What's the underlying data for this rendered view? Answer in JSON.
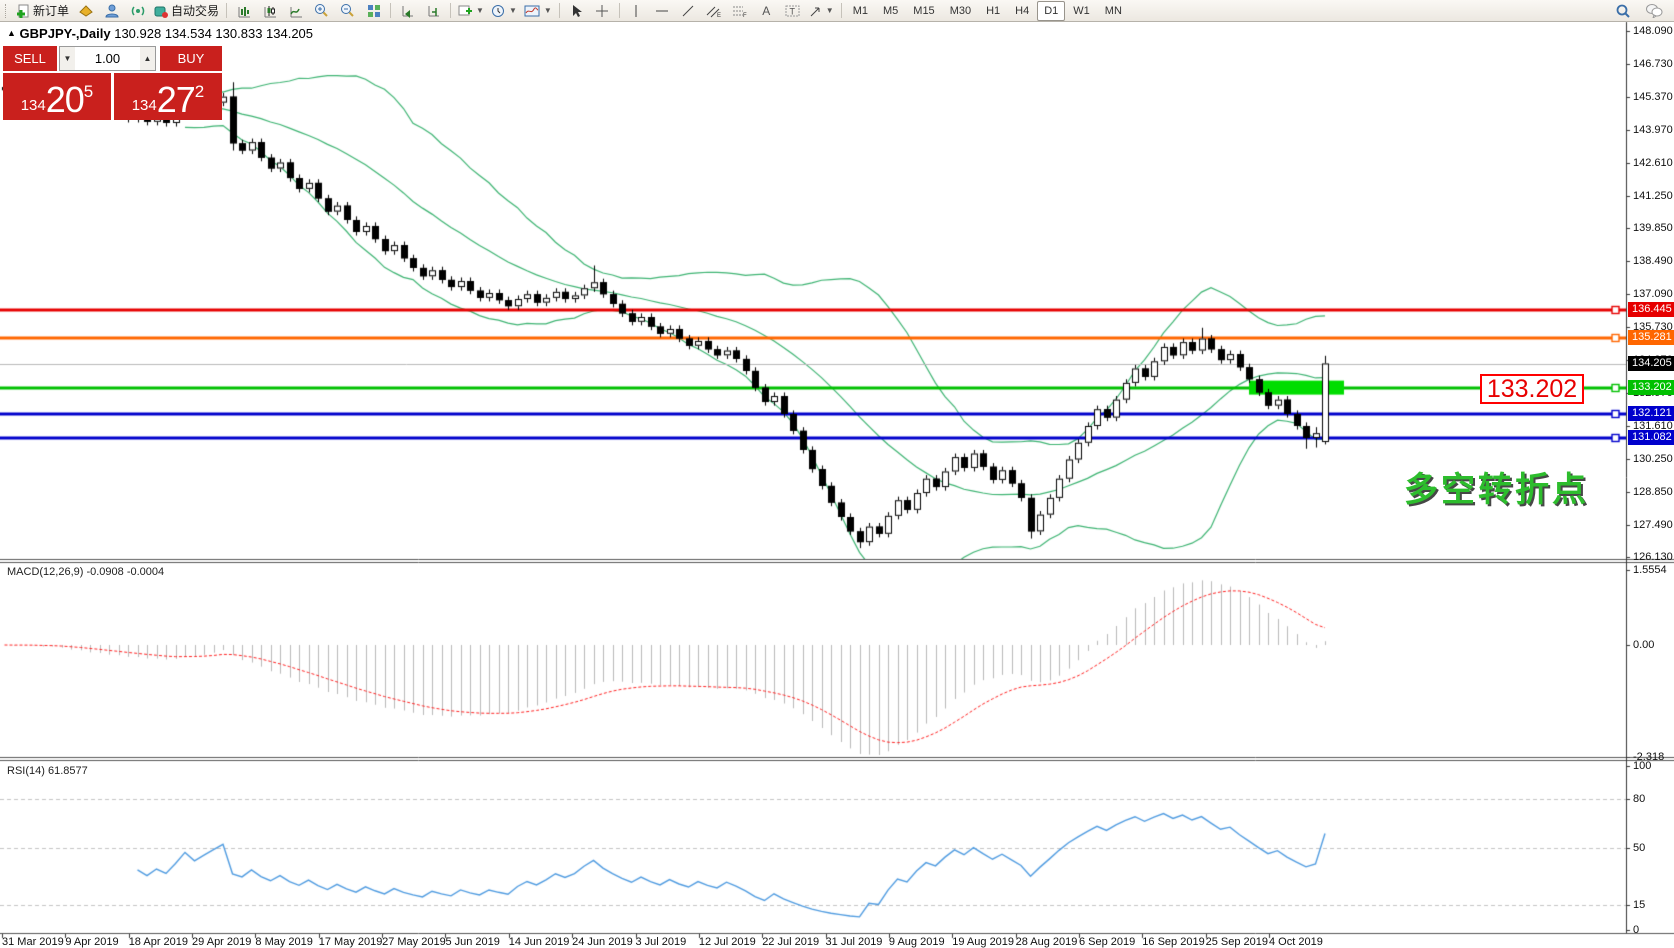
{
  "window": {
    "collapse_icon": "▲",
    "symbol_period": "GBPJPY-,Daily",
    "ohlc": "130.928 134.534 130.833 134.205"
  },
  "toolbar": {
    "new_order": "新订单",
    "autotrade": "自动交易",
    "timeframes": [
      "M1",
      "M5",
      "M15",
      "M30",
      "H1",
      "H4",
      "D1",
      "W1",
      "MN"
    ],
    "active_timeframe": "D1"
  },
  "trade_panel": {
    "sell_label": "SELL",
    "buy_label": "BUY",
    "volume": "1.00",
    "sell_price": {
      "prefix": "134",
      "big": "20",
      "sup": "5"
    },
    "buy_price": {
      "prefix": "134",
      "big": "27",
      "sup": "2"
    }
  },
  "price_axis": {
    "ticks": [
      "148.090",
      "146.730",
      "145.370",
      "143.970",
      "142.610",
      "141.250",
      "139.850",
      "138.490",
      "137.090",
      "135.730",
      "134.370",
      "132.970",
      "131.610",
      "130.250",
      "128.850",
      "127.490",
      "126.130"
    ]
  },
  "current_price": "134.205",
  "hlines": [
    {
      "price": 136.445,
      "label": "136.445",
      "color": "#e60000"
    },
    {
      "price": 135.281,
      "label": "135.281",
      "color": "#ff6600"
    },
    {
      "price": 133.202,
      "label": "133.202",
      "color": "#00c000"
    },
    {
      "price": 132.121,
      "label": "132.121",
      "color": "#0000cc"
    },
    {
      "price": 131.082,
      "label": "131.082",
      "color": "#0000cc"
    }
  ],
  "annotations": {
    "level_label": "133.202",
    "turning_point": "多空转折点",
    "highlight_zone": {
      "from_bar": 131,
      "to_bar": 141,
      "price": 133.202,
      "color": "#00dd00"
    }
  },
  "macd": {
    "label": "MACD(12,26,9) -0.0908 -0.0004",
    "fast": 12,
    "slow": 26,
    "signal": 9,
    "scale": [
      "1.5554",
      "0.00",
      "-2.318"
    ],
    "range": [
      -2.318,
      1.5554
    ]
  },
  "rsi": {
    "label": "RSI(14) 61.8577",
    "period": 14,
    "value": 61.8577,
    "levels": [
      80,
      50,
      15
    ],
    "scale": [
      "100",
      "80",
      "50",
      "15",
      "0"
    ]
  },
  "date_axis": [
    "31 Mar 2019",
    "9 Apr 2019",
    "18 Apr 2019",
    "29 Apr 2019",
    "8 May 2019",
    "17 May 2019",
    "27 May 2019",
    "5 Jun 2019",
    "14 Jun 2019",
    "24 Jun 2019",
    "3 Jul 2019",
    "12 Jul 2019",
    "22 Jul 2019",
    "31 Jul 2019",
    "9 Aug 2019",
    "19 Aug 2019",
    "28 Aug 2019",
    "6 Sep 2019",
    "16 Sep 2019",
    "25 Sep 2019",
    "4 Oct 2019"
  ],
  "chart_data": {
    "type": "candlestick",
    "symbol": "GBPJPY",
    "timeframe": "Daily",
    "price_range": [
      126.13,
      148.09
    ],
    "indicators": {
      "bollinger": {
        "period": 20,
        "deviation": 2,
        "color": "#3cb371"
      },
      "macd": {
        "fast": 12,
        "slow": 26,
        "signal": 9,
        "histogram_color": "#b8b8b8",
        "signal_color": "#ff2020"
      },
      "rsi": {
        "period": 14,
        "color": "#4f9be0"
      }
    },
    "candles": [
      [
        145.75,
        145.9,
        145.47,
        145.62
      ],
      [
        145.62,
        145.77,
        145.33,
        145.48
      ],
      [
        145.48,
        145.85,
        145.33,
        145.7
      ],
      [
        145.7,
        145.85,
        145.37,
        145.52
      ],
      [
        145.52,
        145.67,
        145.15,
        145.3
      ],
      [
        145.3,
        145.7,
        145.15,
        145.55
      ],
      [
        145.55,
        145.7,
        145.03,
        145.18
      ],
      [
        145.18,
        145.33,
        144.77,
        144.92
      ],
      [
        144.92,
        145.27,
        144.77,
        145.12
      ],
      [
        145.12,
        145.27,
        144.55,
        144.7
      ],
      [
        144.7,
        145.1,
        144.55,
        144.95
      ],
      [
        144.95,
        145.1,
        144.45,
        144.6
      ],
      [
        144.6,
        144.93,
        144.45,
        144.78
      ],
      [
        144.78,
        144.93,
        144.27,
        144.42
      ],
      [
        144.42,
        144.8,
        144.27,
        144.65
      ],
      [
        144.65,
        144.8,
        144.15,
        144.3
      ],
      [
        144.3,
        144.67,
        144.15,
        144.52
      ],
      [
        144.52,
        144.67,
        144.1,
        144.25
      ],
      [
        144.25,
        144.75,
        144.1,
        144.6
      ],
      [
        144.6,
        145.2,
        144.45,
        145.05
      ],
      [
        145.05,
        145.2,
        144.45,
        144.6
      ],
      [
        144.6,
        145.0,
        144.45,
        144.85
      ],
      [
        144.85,
        145.25,
        144.7,
        145.1
      ],
      [
        145.1,
        145.5,
        144.95,
        145.35
      ],
      [
        145.35,
        145.95,
        143.1,
        143.4
      ],
      [
        143.4,
        143.55,
        142.95,
        143.1
      ],
      [
        143.1,
        143.6,
        142.95,
        143.45
      ],
      [
        143.45,
        143.6,
        142.65,
        142.8
      ],
      [
        142.8,
        142.95,
        142.2,
        142.35
      ],
      [
        142.35,
        142.75,
        142.2,
        142.6
      ],
      [
        142.6,
        142.75,
        141.8,
        141.95
      ],
      [
        141.95,
        142.1,
        141.35,
        141.5
      ],
      [
        141.5,
        141.9,
        141.35,
        141.75
      ],
      [
        141.75,
        141.9,
        140.95,
        141.1
      ],
      [
        141.1,
        141.25,
        140.4,
        140.55
      ],
      [
        140.55,
        140.95,
        140.4,
        140.8
      ],
      [
        140.8,
        140.95,
        140.05,
        140.2
      ],
      [
        140.2,
        140.35,
        139.55,
        139.7
      ],
      [
        139.7,
        140.1,
        139.55,
        139.95
      ],
      [
        139.95,
        140.1,
        139.25,
        139.4
      ],
      [
        139.4,
        139.55,
        138.75,
        138.9
      ],
      [
        138.9,
        139.3,
        138.75,
        139.15
      ],
      [
        139.15,
        139.3,
        138.45,
        138.6
      ],
      [
        138.6,
        138.75,
        138.05,
        138.2
      ],
      [
        138.2,
        138.35,
        137.7,
        137.85
      ],
      [
        137.85,
        138.25,
        137.7,
        138.1
      ],
      [
        138.1,
        138.25,
        137.55,
        137.7
      ],
      [
        137.7,
        137.85,
        137.25,
        137.4
      ],
      [
        137.4,
        137.8,
        137.25,
        137.65
      ],
      [
        137.65,
        137.8,
        137.1,
        137.25
      ],
      [
        137.25,
        137.4,
        136.8,
        136.95
      ],
      [
        136.95,
        137.3,
        136.8,
        137.15
      ],
      [
        137.15,
        137.3,
        136.7,
        136.85
      ],
      [
        136.85,
        137.0,
        136.45,
        136.6
      ],
      [
        136.6,
        137.05,
        136.45,
        136.9
      ],
      [
        136.9,
        137.25,
        136.75,
        137.1
      ],
      [
        137.1,
        137.25,
        136.6,
        136.75
      ],
      [
        136.75,
        137.1,
        136.6,
        136.95
      ],
      [
        136.95,
        137.35,
        136.8,
        137.2
      ],
      [
        137.2,
        137.35,
        136.75,
        136.9
      ],
      [
        136.9,
        137.2,
        136.75,
        137.05
      ],
      [
        137.05,
        137.5,
        136.9,
        137.35
      ],
      [
        137.35,
        138.3,
        137.2,
        137.6
      ],
      [
        137.6,
        137.75,
        136.95,
        137.1
      ],
      [
        137.1,
        137.25,
        136.55,
        136.7
      ],
      [
        136.7,
        136.85,
        136.15,
        136.3
      ],
      [
        136.3,
        136.45,
        135.8,
        135.95
      ],
      [
        135.95,
        136.3,
        135.8,
        136.15
      ],
      [
        136.15,
        136.3,
        135.6,
        135.75
      ],
      [
        135.75,
        135.9,
        135.3,
        135.45
      ],
      [
        135.45,
        135.8,
        135.3,
        135.65
      ],
      [
        135.65,
        135.8,
        135.1,
        135.25
      ],
      [
        135.25,
        135.4,
        134.8,
        134.95
      ],
      [
        134.95,
        135.3,
        134.8,
        135.15
      ],
      [
        135.15,
        135.3,
        134.65,
        134.8
      ],
      [
        134.8,
        134.95,
        134.4,
        134.55
      ],
      [
        134.55,
        134.9,
        134.4,
        134.75
      ],
      [
        134.75,
        134.9,
        134.25,
        134.4
      ],
      [
        134.4,
        134.55,
        133.75,
        133.9
      ],
      [
        133.9,
        134.05,
        133.05,
        133.2
      ],
      [
        133.2,
        133.35,
        132.45,
        132.6
      ],
      [
        132.6,
        133.0,
        132.45,
        132.85
      ],
      [
        132.85,
        133.0,
        131.95,
        132.1
      ],
      [
        132.1,
        132.25,
        131.25,
        131.4
      ],
      [
        131.4,
        131.55,
        130.45,
        130.6
      ],
      [
        130.6,
        130.75,
        129.65,
        129.8
      ],
      [
        129.8,
        129.95,
        128.95,
        129.1
      ],
      [
        129.1,
        129.25,
        128.25,
        128.4
      ],
      [
        128.4,
        128.55,
        127.65,
        127.8
      ],
      [
        127.8,
        127.95,
        127.05,
        127.2
      ],
      [
        127.2,
        127.35,
        126.5,
        126.75
      ],
      [
        126.75,
        127.55,
        126.6,
        127.4
      ],
      [
        127.4,
        127.55,
        126.95,
        127.1
      ],
      [
        127.1,
        128.0,
        126.95,
        127.85
      ],
      [
        127.85,
        128.65,
        127.7,
        128.5
      ],
      [
        128.5,
        128.65,
        127.95,
        128.1
      ],
      [
        128.1,
        128.95,
        127.95,
        128.8
      ],
      [
        128.8,
        129.55,
        128.65,
        129.4
      ],
      [
        129.4,
        129.55,
        128.9,
        129.05
      ],
      [
        129.05,
        129.85,
        128.9,
        129.7
      ],
      [
        129.7,
        130.45,
        129.55,
        130.3
      ],
      [
        130.3,
        130.45,
        129.7,
        129.85
      ],
      [
        129.85,
        130.6,
        129.7,
        130.45
      ],
      [
        130.45,
        130.6,
        129.75,
        129.9
      ],
      [
        129.9,
        130.05,
        129.2,
        129.35
      ],
      [
        129.35,
        129.9,
        129.2,
        129.75
      ],
      [
        129.75,
        129.9,
        129.05,
        129.2
      ],
      [
        129.2,
        129.35,
        128.45,
        128.6
      ],
      [
        128.6,
        128.75,
        126.9,
        127.2
      ],
      [
        127.2,
        128.05,
        127.05,
        127.9
      ],
      [
        127.9,
        128.75,
        127.75,
        128.6
      ],
      [
        128.6,
        129.55,
        128.45,
        129.4
      ],
      [
        129.4,
        130.35,
        129.25,
        130.2
      ],
      [
        130.2,
        131.05,
        130.05,
        130.9
      ],
      [
        130.9,
        131.75,
        130.75,
        131.6
      ],
      [
        131.6,
        132.45,
        131.45,
        132.3
      ],
      [
        132.3,
        132.45,
        131.8,
        131.95
      ],
      [
        131.95,
        132.85,
        131.8,
        132.7
      ],
      [
        132.7,
        133.55,
        132.55,
        133.4
      ],
      [
        133.4,
        134.15,
        133.25,
        134.0
      ],
      [
        134.0,
        134.15,
        133.5,
        133.65
      ],
      [
        133.65,
        134.45,
        133.5,
        134.3
      ],
      [
        134.3,
        135.05,
        134.15,
        134.9
      ],
      [
        134.9,
        135.05,
        134.4,
        134.55
      ],
      [
        134.55,
        135.25,
        134.4,
        135.1
      ],
      [
        135.1,
        135.25,
        134.6,
        134.75
      ],
      [
        134.75,
        135.7,
        134.6,
        135.25
      ],
      [
        135.25,
        135.4,
        134.65,
        134.8
      ],
      [
        134.8,
        134.95,
        134.2,
        134.35
      ],
      [
        134.35,
        134.75,
        134.2,
        134.6
      ],
      [
        134.6,
        134.75,
        133.9,
        134.05
      ],
      [
        134.05,
        134.2,
        133.4,
        133.55
      ],
      [
        133.55,
        133.7,
        132.85,
        133.0
      ],
      [
        133.0,
        133.15,
        132.3,
        132.45
      ],
      [
        132.45,
        132.85,
        132.3,
        132.7
      ],
      [
        132.7,
        132.85,
        131.95,
        132.1
      ],
      [
        132.1,
        132.25,
        131.45,
        131.6
      ],
      [
        131.6,
        131.75,
        130.65,
        131.1
      ],
      [
        131.1,
        131.55,
        130.7,
        131.3
      ],
      [
        130.93,
        134.53,
        130.83,
        134.21
      ]
    ]
  }
}
